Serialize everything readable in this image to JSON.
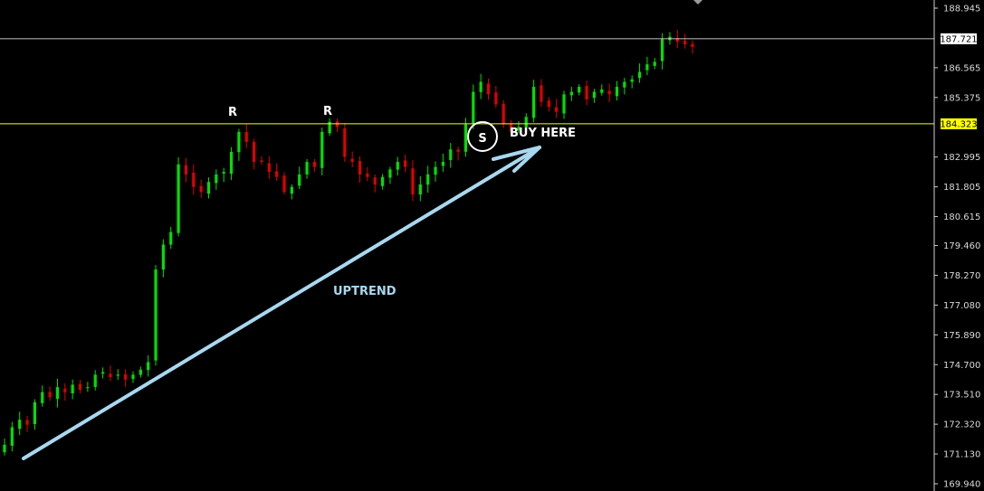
{
  "chart_data": {
    "type": "candlestick",
    "ylim": [
      169.94,
      188.945
    ],
    "y_ticks": [
      "188.945",
      "186.565",
      "185.375",
      "182.995",
      "181.805",
      "180.615",
      "179.460",
      "178.270",
      "177.080",
      "175.890",
      "174.700",
      "173.510",
      "172.320",
      "171.130",
      "169.940"
    ],
    "price_lines": [
      {
        "value": 187.721,
        "label": "187.721",
        "color": "#ffffff"
      },
      {
        "value": 184.323,
        "label": "184.323",
        "color": "#ffff00"
      }
    ],
    "close_series": [
      171.5,
      172.2,
      172.5,
      172.3,
      173.2,
      173.6,
      173.4,
      173.8,
      173.6,
      173.9,
      173.7,
      173.8,
      174.3,
      174.4,
      174.2,
      174.3,
      174.1,
      174.3,
      174.5,
      174.8,
      178.5,
      179.5,
      180.0,
      182.7,
      182.3,
      181.8,
      181.6,
      182.0,
      182.3,
      182.4,
      183.2,
      184.0,
      183.6,
      182.8,
      182.8,
      182.4,
      182.2,
      181.6,
      181.8,
      182.3,
      182.8,
      182.6,
      184.0,
      184.4,
      184.2,
      183.0,
      182.8,
      182.3,
      182.2,
      181.9,
      182.2,
      182.5,
      182.8,
      182.6,
      181.5,
      181.9,
      182.3,
      182.6,
      182.8,
      183.3,
      183.2,
      184.3,
      185.6,
      186.0,
      185.5,
      185.1,
      184.3,
      184.0,
      184.2,
      184.6,
      185.8,
      185.2,
      185.0,
      184.8,
      185.5,
      185.6,
      185.8,
      185.3,
      185.6,
      185.7,
      185.5,
      185.8,
      186.0,
      186.1,
      186.4,
      186.7,
      186.8,
      187.7,
      187.8,
      187.6,
      187.5,
      187.4
    ],
    "annotations": {
      "resistance_label": "R",
      "support_label": "S",
      "buy_label": "BUY HERE",
      "trend_label": "UPTREND"
    },
    "grid": false,
    "colors": {
      "background": "#000000",
      "bull": "#00e000",
      "bear": "#e00000",
      "arrow": "#a8d8f0",
      "support_line": "#ffff00",
      "price_line": "#ffffff"
    }
  }
}
